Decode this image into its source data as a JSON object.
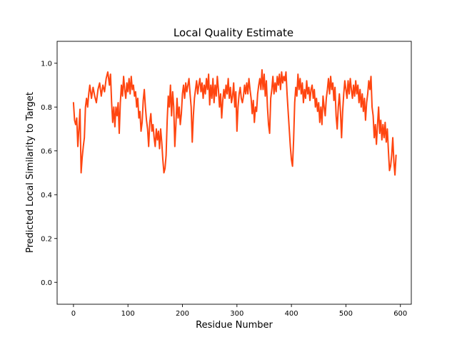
{
  "chart_data": {
    "type": "line",
    "title": "Local Quality Estimate",
    "xlabel": "Residue Number",
    "ylabel": "Predicted Local Similarity to Target",
    "xlim": [
      -30,
      620
    ],
    "ylim": [
      -0.1,
      1.1
    ],
    "xticks": [
      0,
      100,
      200,
      300,
      400,
      500,
      600
    ],
    "yticks": [
      0.0,
      0.2,
      0.4,
      0.6,
      0.8,
      1.0
    ],
    "ytick_labels": [
      "0.0",
      "0.2",
      "0.4",
      "0.6",
      "0.8",
      "1.0"
    ],
    "grid": false,
    "series": [
      {
        "name": "",
        "color": "#ff4510",
        "points": [
          [
            0,
            0.82
          ],
          [
            2,
            0.74
          ],
          [
            4,
            0.72
          ],
          [
            6,
            0.75
          ],
          [
            8,
            0.62
          ],
          [
            10,
            0.7
          ],
          [
            12,
            0.79
          ],
          [
            14,
            0.5
          ],
          [
            16,
            0.57
          ],
          [
            18,
            0.62
          ],
          [
            20,
            0.66
          ],
          [
            22,
            0.8
          ],
          [
            24,
            0.84
          ],
          [
            26,
            0.8
          ],
          [
            28,
            0.86
          ],
          [
            30,
            0.9
          ],
          [
            33,
            0.84
          ],
          [
            36,
            0.89
          ],
          [
            39,
            0.85
          ],
          [
            42,
            0.82
          ],
          [
            45,
            0.88
          ],
          [
            48,
            0.91
          ],
          [
            51,
            0.85
          ],
          [
            54,
            0.9
          ],
          [
            57,
            0.87
          ],
          [
            60,
            0.93
          ],
          [
            63,
            0.96
          ],
          [
            66,
            0.9
          ],
          [
            68,
            0.95
          ],
          [
            70,
            0.82
          ],
          [
            72,
            0.73
          ],
          [
            74,
            0.8
          ],
          [
            76,
            0.71
          ],
          [
            78,
            0.8
          ],
          [
            80,
            0.76
          ],
          [
            82,
            0.82
          ],
          [
            84,
            0.68
          ],
          [
            86,
            0.82
          ],
          [
            88,
            0.9
          ],
          [
            90,
            0.85
          ],
          [
            92,
            0.94
          ],
          [
            94,
            0.88
          ],
          [
            96,
            0.84
          ],
          [
            98,
            0.91
          ],
          [
            100,
            0.87
          ],
          [
            102,
            0.93
          ],
          [
            104,
            0.86
          ],
          [
            106,
            0.94
          ],
          [
            108,
            0.88
          ],
          [
            110,
            0.9
          ],
          [
            112,
            0.85
          ],
          [
            114,
            0.87
          ],
          [
            116,
            0.8
          ],
          [
            118,
            0.84
          ],
          [
            120,
            0.75
          ],
          [
            122,
            0.78
          ],
          [
            124,
            0.69
          ],
          [
            126,
            0.73
          ],
          [
            128,
            0.83
          ],
          [
            130,
            0.88
          ],
          [
            132,
            0.8
          ],
          [
            134,
            0.74
          ],
          [
            136,
            0.7
          ],
          [
            138,
            0.62
          ],
          [
            140,
            0.73
          ],
          [
            142,
            0.77
          ],
          [
            144,
            0.69
          ],
          [
            146,
            0.72
          ],
          [
            148,
            0.66
          ],
          [
            150,
            0.62
          ],
          [
            152,
            0.7
          ],
          [
            154,
            0.65
          ],
          [
            156,
            0.69
          ],
          [
            158,
            0.61
          ],
          [
            160,
            0.7
          ],
          [
            162,
            0.64
          ],
          [
            164,
            0.56
          ],
          [
            166,
            0.5
          ],
          [
            168,
            0.52
          ],
          [
            170,
            0.58
          ],
          [
            172,
            0.74
          ],
          [
            174,
            0.85
          ],
          [
            176,
            0.8
          ],
          [
            178,
            0.9
          ],
          [
            180,
            0.76
          ],
          [
            182,
            0.87
          ],
          [
            184,
            0.8
          ],
          [
            186,
            0.62
          ],
          [
            188,
            0.72
          ],
          [
            190,
            0.84
          ],
          [
            192,
            0.75
          ],
          [
            194,
            0.8
          ],
          [
            196,
            0.72
          ],
          [
            198,
            0.77
          ],
          [
            200,
            0.86
          ],
          [
            202,
            0.9
          ],
          [
            204,
            0.84
          ],
          [
            206,
            0.91
          ],
          [
            208,
            0.87
          ],
          [
            210,
            0.9
          ],
          [
            212,
            0.93
          ],
          [
            214,
            0.86
          ],
          [
            216,
            0.8
          ],
          [
            218,
            0.64
          ],
          [
            220,
            0.76
          ],
          [
            222,
            0.84
          ],
          [
            224,
            0.88
          ],
          [
            226,
            0.92
          ],
          [
            228,
            0.86
          ],
          [
            230,
            0.9
          ],
          [
            232,
            0.93
          ],
          [
            234,
            0.87
          ],
          [
            236,
            0.91
          ],
          [
            238,
            0.84
          ],
          [
            240,
            0.9
          ],
          [
            242,
            0.86
          ],
          [
            244,
            0.93
          ],
          [
            246,
            0.88
          ],
          [
            248,
            0.95
          ],
          [
            250,
            0.81
          ],
          [
            252,
            0.9
          ],
          [
            254,
            0.84
          ],
          [
            256,
            0.93
          ],
          [
            258,
            0.82
          ],
          [
            260,
            0.9
          ],
          [
            262,
            0.85
          ],
          [
            264,
            0.94
          ],
          [
            266,
            0.88
          ],
          [
            268,
            0.8
          ],
          [
            270,
            0.86
          ],
          [
            272,
            0.75
          ],
          [
            274,
            0.83
          ],
          [
            276,
            0.88
          ],
          [
            278,
            0.84
          ],
          [
            280,
            0.9
          ],
          [
            282,
            0.86
          ],
          [
            284,
            0.93
          ],
          [
            286,
            0.84
          ],
          [
            288,
            0.89
          ],
          [
            290,
            0.82
          ],
          [
            292,
            0.85
          ],
          [
            294,
            0.91
          ],
          [
            296,
            0.8
          ],
          [
            298,
            0.87
          ],
          [
            300,
            0.69
          ],
          [
            302,
            0.8
          ],
          [
            304,
            0.86
          ],
          [
            306,
            0.89
          ],
          [
            308,
            0.84
          ],
          [
            310,
            0.82
          ],
          [
            312,
            0.85
          ],
          [
            314,
            0.9
          ],
          [
            316,
            0.86
          ],
          [
            318,
            0.91
          ],
          [
            320,
            0.86
          ],
          [
            322,
            0.93
          ],
          [
            324,
            0.88
          ],
          [
            326,
            0.84
          ],
          [
            328,
            0.77
          ],
          [
            330,
            0.83
          ],
          [
            332,
            0.73
          ],
          [
            334,
            0.8
          ],
          [
            336,
            0.78
          ],
          [
            338,
            0.86
          ],
          [
            340,
            0.9
          ],
          [
            342,
            0.93
          ],
          [
            344,
            0.88
          ],
          [
            346,
            0.97
          ],
          [
            348,
            0.88
          ],
          [
            350,
            0.95
          ],
          [
            352,
            0.85
          ],
          [
            354,
            0.92
          ],
          [
            356,
            0.8
          ],
          [
            358,
            0.72
          ],
          [
            360,
            0.68
          ],
          [
            362,
            0.84
          ],
          [
            364,
            0.88
          ],
          [
            366,
            0.94
          ],
          [
            368,
            0.86
          ],
          [
            370,
            0.91
          ],
          [
            372,
            0.87
          ],
          [
            374,
            0.94
          ],
          [
            376,
            0.9
          ],
          [
            378,
            0.95
          ],
          [
            380,
            0.88
          ],
          [
            382,
            0.96
          ],
          [
            384,
            0.91
          ],
          [
            386,
            0.94
          ],
          [
            388,
            0.92
          ],
          [
            390,
            0.96
          ],
          [
            392,
            0.86
          ],
          [
            394,
            0.78
          ],
          [
            396,
            0.7
          ],
          [
            398,
            0.62
          ],
          [
            400,
            0.56
          ],
          [
            402,
            0.53
          ],
          [
            404,
            0.65
          ],
          [
            406,
            0.82
          ],
          [
            408,
            0.89
          ],
          [
            410,
            0.85
          ],
          [
            412,
            0.95
          ],
          [
            414,
            0.88
          ],
          [
            416,
            0.93
          ],
          [
            418,
            0.86
          ],
          [
            420,
            0.91
          ],
          [
            422,
            0.82
          ],
          [
            424,
            0.88
          ],
          [
            426,
            0.84
          ],
          [
            428,
            0.92
          ],
          [
            430,
            0.86
          ],
          [
            432,
            0.89
          ],
          [
            434,
            0.83
          ],
          [
            436,
            0.88
          ],
          [
            438,
            0.9
          ],
          [
            440,
            0.84
          ],
          [
            442,
            0.88
          ],
          [
            444,
            0.8
          ],
          [
            446,
            0.84
          ],
          [
            448,
            0.78
          ],
          [
            450,
            0.82
          ],
          [
            452,
            0.73
          ],
          [
            454,
            0.8
          ],
          [
            456,
            0.72
          ],
          [
            458,
            0.85
          ],
          [
            460,
            0.8
          ],
          [
            462,
            0.76
          ],
          [
            464,
            0.84
          ],
          [
            466,
            0.88
          ],
          [
            468,
            0.93
          ],
          [
            470,
            0.86
          ],
          [
            472,
            0.94
          ],
          [
            474,
            0.88
          ],
          [
            476,
            0.91
          ],
          [
            478,
            0.83
          ],
          [
            480,
            0.89
          ],
          [
            482,
            0.76
          ],
          [
            484,
            0.7
          ],
          [
            486,
            0.8
          ],
          [
            488,
            0.86
          ],
          [
            490,
            0.78
          ],
          [
            492,
            0.66
          ],
          [
            494,
            0.78
          ],
          [
            496,
            0.86
          ],
          [
            498,
            0.92
          ],
          [
            500,
            0.88
          ],
          [
            502,
            0.84
          ],
          [
            504,
            0.92
          ],
          [
            506,
            0.86
          ],
          [
            508,
            0.93
          ],
          [
            510,
            0.88
          ],
          [
            512,
            0.84
          ],
          [
            514,
            0.9
          ],
          [
            516,
            0.85
          ],
          [
            518,
            0.92
          ],
          [
            520,
            0.86
          ],
          [
            522,
            0.9
          ],
          [
            524,
            0.82
          ],
          [
            526,
            0.88
          ],
          [
            528,
            0.8
          ],
          [
            530,
            0.86
          ],
          [
            532,
            0.78
          ],
          [
            534,
            0.84
          ],
          [
            536,
            0.74
          ],
          [
            538,
            0.82
          ],
          [
            540,
            0.86
          ],
          [
            542,
            0.92
          ],
          [
            544,
            0.88
          ],
          [
            546,
            0.94
          ],
          [
            548,
            0.8
          ],
          [
            550,
            0.76
          ],
          [
            552,
            0.66
          ],
          [
            554,
            0.72
          ],
          [
            556,
            0.63
          ],
          [
            558,
            0.72
          ],
          [
            560,
            0.8
          ],
          [
            562,
            0.68
          ],
          [
            564,
            0.74
          ],
          [
            566,
            0.65
          ],
          [
            568,
            0.72
          ],
          [
            570,
            0.66
          ],
          [
            572,
            0.73
          ],
          [
            574,
            0.64
          ],
          [
            576,
            0.7
          ],
          [
            578,
            0.6
          ],
          [
            580,
            0.51
          ],
          [
            582,
            0.53
          ],
          [
            584,
            0.58
          ],
          [
            586,
            0.66
          ],
          [
            588,
            0.55
          ],
          [
            590,
            0.49
          ],
          [
            592,
            0.58
          ]
        ]
      }
    ]
  }
}
